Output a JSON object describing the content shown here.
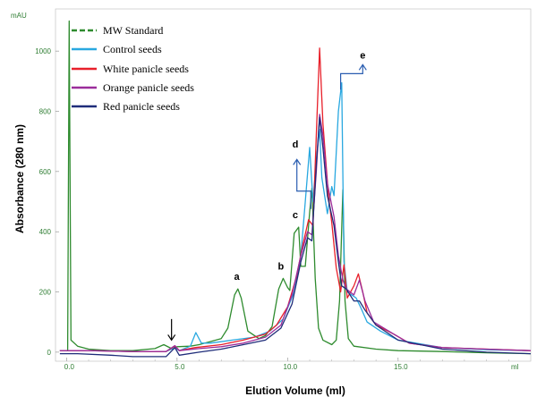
{
  "chart_data": {
    "type": "line",
    "xlabel": "Elution Volume (ml)",
    "ylabel": "Absorbance (280 nm)",
    "y_unit": "mAU",
    "x_unit": "ml",
    "xlim": [
      -0.5,
      21
    ],
    "ylim": [
      -30,
      1140
    ],
    "x_ticks": [
      "0.0",
      "5.0",
      "10.0",
      "15.0"
    ],
    "x_ticks_pos": [
      0,
      5,
      10,
      15
    ],
    "y_ticks": [
      "0",
      "200",
      "400",
      "600",
      "800",
      "1000"
    ],
    "y_ticks_pos": [
      0,
      200,
      400,
      600,
      800,
      1000
    ],
    "legend": {
      "placement": "top-left"
    },
    "series": [
      {
        "name": "MW Standard",
        "color": "#2e8b2e",
        "dashed": true,
        "points": [
          [
            -0.3,
            5
          ],
          [
            0.05,
            5
          ],
          [
            0.12,
            1100
          ],
          [
            0.2,
            40
          ],
          [
            0.5,
            20
          ],
          [
            1,
            10
          ],
          [
            2,
            5
          ],
          [
            3,
            5
          ],
          [
            4,
            12
          ],
          [
            4.4,
            25
          ],
          [
            4.8,
            10
          ],
          [
            5,
            18
          ],
          [
            5.6,
            20
          ],
          [
            6,
            25
          ],
          [
            6.5,
            35
          ],
          [
            7,
            45
          ],
          [
            7.3,
            80
          ],
          [
            7.6,
            190
          ],
          [
            7.75,
            210
          ],
          [
            7.9,
            180
          ],
          [
            8.2,
            70
          ],
          [
            8.7,
            45
          ],
          [
            9,
            55
          ],
          [
            9.3,
            85
          ],
          [
            9.6,
            210
          ],
          [
            9.8,
            245
          ],
          [
            10,
            215
          ],
          [
            10.1,
            205
          ],
          [
            10.3,
            395
          ],
          [
            10.5,
            415
          ],
          [
            10.6,
            285
          ],
          [
            10.8,
            285
          ],
          [
            11,
            465
          ],
          [
            11.1,
            545
          ],
          [
            11.25,
            245
          ],
          [
            11.4,
            80
          ],
          [
            11.6,
            40
          ],
          [
            12,
            25
          ],
          [
            12.2,
            40
          ],
          [
            12.35,
            170
          ],
          [
            12.5,
            540
          ],
          [
            12.6,
            170
          ],
          [
            12.75,
            45
          ],
          [
            13,
            20
          ],
          [
            14,
            10
          ],
          [
            15,
            5
          ],
          [
            17,
            2
          ],
          [
            19,
            -2
          ],
          [
            21,
            -5
          ]
        ]
      },
      {
        "name": "Control seeds",
        "color": "#29a8e0",
        "points": [
          [
            -0.3,
            5
          ],
          [
            1,
            5
          ],
          [
            3,
            2
          ],
          [
            4.5,
            2
          ],
          [
            4.9,
            15
          ],
          [
            5.1,
            5
          ],
          [
            5.6,
            20
          ],
          [
            5.85,
            65
          ],
          [
            6.1,
            30
          ],
          [
            6.5,
            30
          ],
          [
            7.5,
            40
          ],
          [
            8.5,
            50
          ],
          [
            9.2,
            70
          ],
          [
            9.8,
            110
          ],
          [
            10.3,
            200
          ],
          [
            10.6,
            320
          ],
          [
            10.8,
            500
          ],
          [
            11,
            680
          ],
          [
            11.15,
            500
          ],
          [
            11.3,
            640
          ],
          [
            11.45,
            740
          ],
          [
            11.55,
            580
          ],
          [
            11.8,
            460
          ],
          [
            12,
            550
          ],
          [
            12.1,
            520
          ],
          [
            12.3,
            800
          ],
          [
            12.45,
            895
          ],
          [
            12.55,
            300
          ],
          [
            12.7,
            200
          ],
          [
            13.1,
            180
          ],
          [
            13.3,
            150
          ],
          [
            13.6,
            100
          ],
          [
            14.2,
            70
          ],
          [
            15,
            40
          ],
          [
            17,
            15
          ],
          [
            19,
            8
          ],
          [
            21,
            5
          ]
        ]
      },
      {
        "name": "White panicle seeds",
        "color": "#e8202a",
        "points": [
          [
            -0.3,
            5
          ],
          [
            1,
            5
          ],
          [
            3,
            2
          ],
          [
            4.5,
            2
          ],
          [
            4.9,
            20
          ],
          [
            5.1,
            5
          ],
          [
            5.8,
            15
          ],
          [
            7,
            25
          ],
          [
            8,
            40
          ],
          [
            9,
            60
          ],
          [
            9.5,
            90
          ],
          [
            10,
            150
          ],
          [
            10.4,
            250
          ],
          [
            10.7,
            360
          ],
          [
            10.95,
            440
          ],
          [
            11.15,
            420
          ],
          [
            11.3,
            720
          ],
          [
            11.45,
            1010
          ],
          [
            11.6,
            760
          ],
          [
            11.85,
            520
          ],
          [
            12,
            430
          ],
          [
            12.2,
            280
          ],
          [
            12.4,
            200
          ],
          [
            12.55,
            290
          ],
          [
            12.7,
            180
          ],
          [
            13,
            220
          ],
          [
            13.2,
            260
          ],
          [
            13.4,
            200
          ],
          [
            13.6,
            130
          ],
          [
            14,
            90
          ],
          [
            14.8,
            60
          ],
          [
            15.5,
            30
          ],
          [
            17,
            15
          ],
          [
            19,
            10
          ],
          [
            21,
            5
          ]
        ]
      },
      {
        "name": "Orange panicle seeds",
        "color": "#9b2d9b",
        "points": [
          [
            -0.3,
            5
          ],
          [
            1,
            5
          ],
          [
            3,
            2
          ],
          [
            4.5,
            2
          ],
          [
            4.9,
            22
          ],
          [
            5.1,
            5
          ],
          [
            6,
            12
          ],
          [
            7,
            18
          ],
          [
            8,
            30
          ],
          [
            9,
            50
          ],
          [
            9.7,
            90
          ],
          [
            10.2,
            190
          ],
          [
            10.6,
            320
          ],
          [
            10.9,
            400
          ],
          [
            11.1,
            390
          ],
          [
            11.3,
            600
          ],
          [
            11.45,
            790
          ],
          [
            11.6,
            720
          ],
          [
            11.8,
            560
          ],
          [
            12.1,
            450
          ],
          [
            12.3,
            320
          ],
          [
            12.5,
            240
          ],
          [
            12.65,
            210
          ],
          [
            13,
            190
          ],
          [
            13.25,
            240
          ],
          [
            13.5,
            170
          ],
          [
            13.9,
            100
          ],
          [
            14.8,
            60
          ],
          [
            15.5,
            30
          ],
          [
            17,
            15
          ],
          [
            19,
            10
          ],
          [
            21,
            5
          ]
        ]
      },
      {
        "name": "Red panicle seeds",
        "color": "#1f2d7a",
        "points": [
          [
            -0.3,
            -5
          ],
          [
            0.5,
            -5
          ],
          [
            2,
            -10
          ],
          [
            3,
            -15
          ],
          [
            4.5,
            -15
          ],
          [
            4.9,
            15
          ],
          [
            5.1,
            -10
          ],
          [
            6,
            0
          ],
          [
            7,
            10
          ],
          [
            8,
            25
          ],
          [
            9,
            40
          ],
          [
            9.7,
            80
          ],
          [
            10.2,
            160
          ],
          [
            10.6,
            300
          ],
          [
            10.9,
            380
          ],
          [
            11.1,
            370
          ],
          [
            11.3,
            620
          ],
          [
            11.45,
            780
          ],
          [
            11.6,
            680
          ],
          [
            11.8,
            520
          ],
          [
            12.1,
            420
          ],
          [
            12.3,
            300
          ],
          [
            12.45,
            220
          ],
          [
            12.65,
            210
          ],
          [
            13,
            170
          ],
          [
            13.25,
            170
          ],
          [
            13.5,
            140
          ],
          [
            14,
            90
          ],
          [
            15,
            40
          ],
          [
            17,
            10
          ],
          [
            19,
            0
          ],
          [
            21,
            -5
          ]
        ]
      }
    ],
    "peak_labels": [
      {
        "text": "a",
        "x": 7.7,
        "y": 240
      },
      {
        "text": "b",
        "x": 9.7,
        "y": 275
      },
      {
        "text": "c",
        "x": 10.35,
        "y": 445
      },
      {
        "text": "d",
        "x": 10.35,
        "y": 680
      },
      {
        "text": "e",
        "x": 13.4,
        "y": 975
      }
    ],
    "bracket_d": {
      "x_left": 10.42,
      "x_right": 11.05,
      "y_arrow_top": 640,
      "y_base": 535
    },
    "bracket_e": {
      "x_left": 12.4,
      "x_right": 13.4,
      "y_base": 925,
      "y_arrow_top": 955
    },
    "void_arrow": {
      "x": 4.75,
      "y_top": 110,
      "y_bottom": 40
    }
  }
}
